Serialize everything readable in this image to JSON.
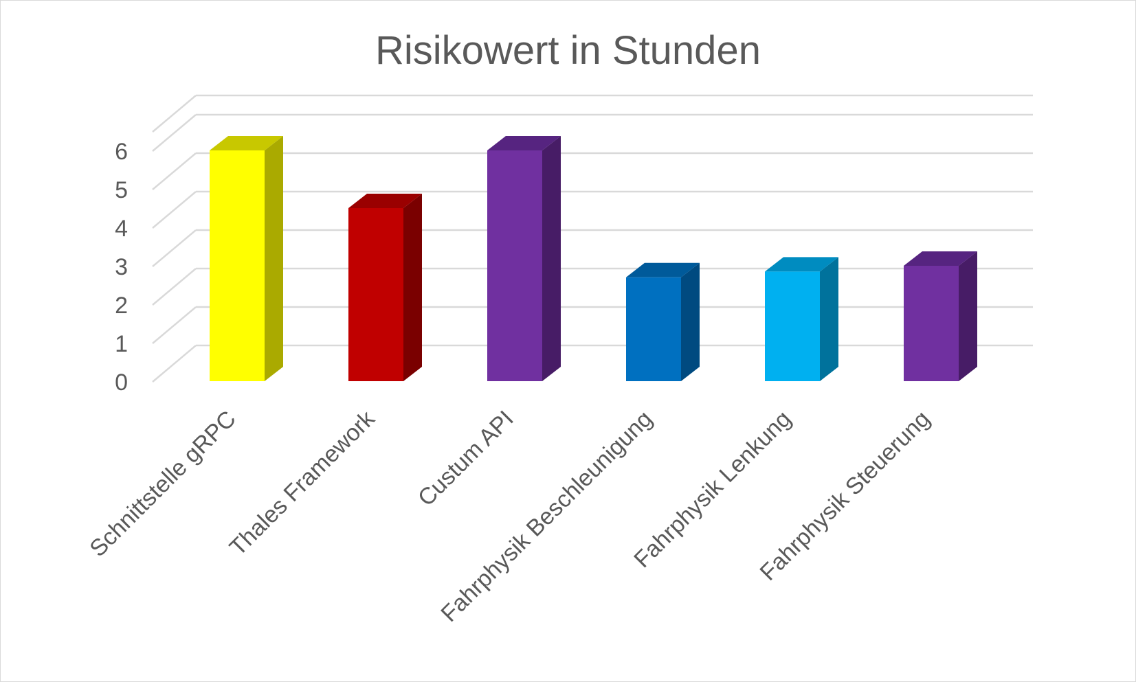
{
  "chart_data": {
    "type": "bar",
    "title": "Risikowert in Stunden",
    "xlabel": "",
    "ylabel": "",
    "ylim": [
      0,
      6.5
    ],
    "yticks": [
      "0",
      "1",
      "2",
      "3",
      "4",
      "5",
      "6"
    ],
    "grid": true,
    "legend": "none",
    "style": "3d-column",
    "categories": [
      "Schnittstelle gRPC",
      "Thales Framework",
      "Custum API",
      "Fahrphysik Beschleunigung",
      "Fahrphysik Lenkung",
      "Fahrphysik Steuerung"
    ],
    "values": [
      6.0,
      4.5,
      6.0,
      2.7,
      2.85,
      3.0
    ],
    "colors": [
      {
        "front": "#ffff00",
        "side": "#aaaa00",
        "top": "#c8c800"
      },
      {
        "front": "#c00000",
        "side": "#7a0000",
        "top": "#9a0000"
      },
      {
        "front": "#7030a0",
        "side": "#471c66",
        "top": "#562480"
      },
      {
        "front": "#0070c0",
        "side": "#004a80",
        "top": "#005a9a"
      },
      {
        "front": "#00b0f0",
        "side": "#00729c",
        "top": "#008cc0"
      },
      {
        "front": "#7030a0",
        "side": "#471c66",
        "top": "#562480"
      }
    ]
  }
}
